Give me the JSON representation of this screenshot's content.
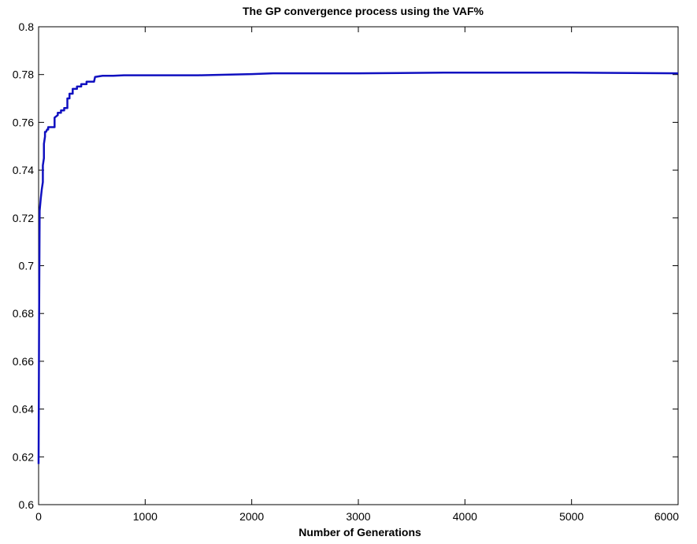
{
  "chart_data": {
    "type": "line",
    "title": "The GP convergence process using the VAF%",
    "xlabel": "Number of Generations",
    "ylabel": "",
    "xlim": [
      0,
      6000
    ],
    "ylim": [
      0.6,
      0.8
    ],
    "xticks": [
      0,
      1000,
      2000,
      3000,
      4000,
      5000,
      6000
    ],
    "yticks": [
      0.6,
      0.62,
      0.64,
      0.66,
      0.68,
      0.7,
      0.72,
      0.74,
      0.76,
      0.78,
      0.8
    ],
    "grid": false,
    "line_color": "#1010c0",
    "series": [
      {
        "x": [
          0,
          5,
          10,
          20,
          30,
          40,
          40,
          50,
          50,
          60,
          60,
          70,
          80,
          90,
          90,
          120,
          150,
          150,
          180,
          180,
          210,
          210,
          240,
          240,
          270,
          270,
          290,
          290,
          320,
          320,
          360,
          360,
          400,
          400,
          450,
          450,
          520,
          530,
          600,
          700,
          800,
          1000,
          1500,
          2000,
          2200,
          3000,
          3800,
          4000,
          5000,
          6000
        ],
        "y": [
          0.617,
          0.68,
          0.723,
          0.728,
          0.732,
          0.735,
          0.742,
          0.745,
          0.751,
          0.754,
          0.756,
          0.756,
          0.757,
          0.757,
          0.758,
          0.758,
          0.758,
          0.762,
          0.763,
          0.764,
          0.764,
          0.765,
          0.765,
          0.766,
          0.766,
          0.77,
          0.77,
          0.772,
          0.772,
          0.774,
          0.774,
          0.775,
          0.775,
          0.776,
          0.776,
          0.777,
          0.777,
          0.779,
          0.7795,
          0.7795,
          0.7797,
          0.7797,
          0.7797,
          0.7802,
          0.7805,
          0.7805,
          0.7808,
          0.7808,
          0.7808,
          0.7805
        ]
      }
    ]
  }
}
